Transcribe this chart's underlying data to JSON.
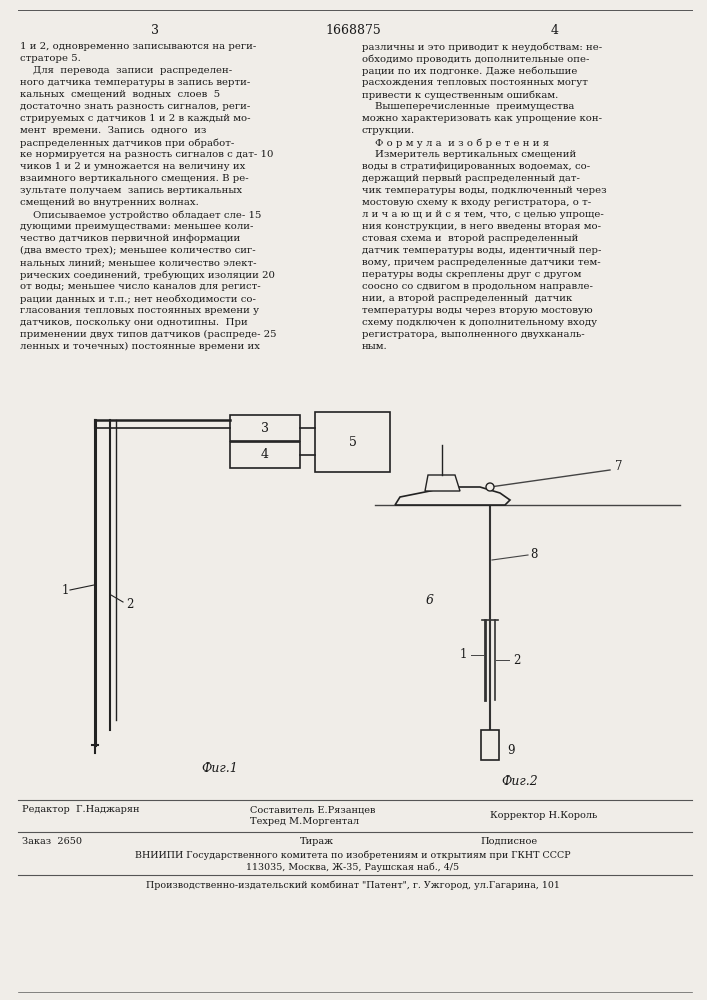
{
  "bg_color": "#f0ede8",
  "text_color": "#1a1a1a",
  "page_num_left": "3",
  "page_num_center": "1668875",
  "page_num_right": "4",
  "left_col_lines": [
    "1 и 2, одновременно записываются на реги-",
    "страторе 5.",
    "    Для  перевода  записи  распределен-",
    "ного датчика температуры в запись верти-",
    "кальных  смещений  водных  слоев  5",
    "достаточно знать разность сигналов, реги-",
    "стрируемых с датчиков 1 и 2 в каждый мо-",
    "мент  времени.  Запись  одного  из",
    "распределенных датчиков при обработ-",
    "ке нормируется на разность сигналов с дат- 10",
    "чиков 1 и 2 и умножается на величину их",
    "взаимного вертикального смещения. В ре-",
    "зультате получаем  запись вертикальных",
    "смещений во внутренних волнах.",
    "    Описываемое устройство обладает сле- 15",
    "дующими преимуществами: меньшее коли-",
    "чество датчиков первичной информации",
    "(два вместо трех); меньшее количество сиг-",
    "нальных линий; меньшее количество элект-",
    "рических соединений, требующих изоляции 20",
    "от воды; меньшее число каналов для регист-",
    "рации данных и т.п.; нет необходимости со-",
    "гласования тепловых постоянных времени у",
    "датчиков, поскольку они однотипны.  При",
    "применении двух типов датчиков (распреде- 25",
    "ленных и точечных) постоянные времени их"
  ],
  "right_col_lines": [
    "различны и это приводит к неудобствам: не-",
    "обходимо проводить дополнительные опе-",
    "рации по их подгонке. Даже небольшие",
    "расхождения тепловых постоянных могут",
    "привести к существенным ошибкам.",
    "    Вышеперечисленные  преимущества",
    "можно характеризовать как упрощение кон-",
    "струкции.",
    "    Ф о р м у л а  и з о б р е т е н и я",
    "    Измеритель вертикальных смещений",
    "воды в стратифицированных водоемах, со-",
    "держащий первый распределенный дат-",
    "чик температуры воды, подключенный через",
    "мостовую схему к входу регистратора, о т-",
    "л и ч а ю щ и й с я тем, что, с целью упроще-",
    "ния конструкции, в него введены вторая мо-",
    "стовая схема и  второй распределенный",
    "датчик температуры воды, идентичный пер-",
    "вому, причем распределенные датчики тем-",
    "пературы воды скреплены друг с другом",
    "соосно со сдвигом в продольном направле-",
    "нии, а второй распределенный  датчик",
    "температуры воды через вторую мостовую",
    "схему подключен к дополнительному входу",
    "регистратора, выполненного двухканаль-",
    "ным."
  ],
  "footer_editor": "Редактор  Г.Наджарян",
  "footer_author": "Составитель Е.Рязанцев",
  "footer_tech": "Техред М.Моргентал",
  "footer_corrector": "Корректор Н.Король",
  "footer_order": "Заказ  2650",
  "footer_edition": "Тираж",
  "footer_subscription": "Подписное",
  "footer_org": "ВНИИПИ Государственного комитета по изобретениям и открытиям при ГКНТ СССР",
  "footer_address": "113035, Москва, Ж-35, Раушская наб., 4/5",
  "footer_publisher": "Производственно-издательский комбинат \"Патент\", г. Ужгород, ул.Гагарина, 101",
  "fig1_label": "Фиг.1",
  "fig2_label": "Фиг.2"
}
